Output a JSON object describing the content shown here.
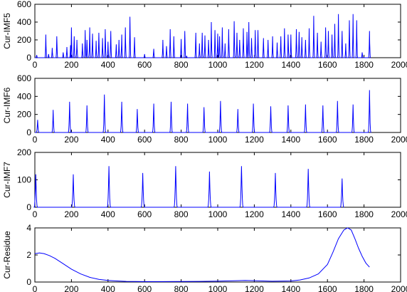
{
  "chart_data": [
    {
      "type": "line",
      "ylabel": "Cur-IMF5",
      "xlim": [
        0,
        2000
      ],
      "ylim": [
        0,
        600
      ],
      "xticks": [
        0,
        200,
        400,
        600,
        800,
        1000,
        1200,
        1400,
        1600,
        1800,
        2000
      ],
      "yticks": [
        0,
        200,
        400,
        600
      ],
      "color": "#0000ff",
      "series": [
        {
          "x": [
            10,
            60,
            75,
            95,
            120,
            155,
            175,
            195,
            200,
            215,
            230,
            260,
            275,
            285,
            300,
            315,
            335,
            350,
            370,
            385,
            400,
            415,
            445,
            460,
            475,
            495,
            520,
            545,
            600,
            650,
            700,
            720,
            740,
            760,
            800,
            820,
            830,
            880,
            900,
            915,
            930,
            950,
            965,
            985,
            1000,
            1010,
            1025,
            1040,
            1060,
            1090,
            1105,
            1120,
            1140,
            1160,
            1170,
            1185,
            1205,
            1220,
            1250,
            1275,
            1300,
            1325,
            1345,
            1365,
            1385,
            1400,
            1430,
            1445,
            1460,
            1480,
            1500,
            1525,
            1545,
            1565,
            1590,
            1605,
            1625,
            1640,
            1660,
            1680,
            1700,
            1720,
            1740,
            1760,
            1790,
            1830
          ],
          "values": [
            30,
            260,
            40,
            110,
            240,
            60,
            120,
            140,
            340,
            240,
            200,
            160,
            310,
            200,
            340,
            270,
            190,
            280,
            220,
            320,
            180,
            300,
            150,
            200,
            260,
            340,
            460,
            230,
            40,
            100,
            200,
            130,
            320,
            240,
            210,
            300,
            20,
            280,
            160,
            280,
            250,
            200,
            400,
            310,
            270,
            240,
            340,
            160,
            320,
            410,
            280,
            200,
            330,
            290,
            400,
            220,
            310,
            310,
            220,
            200,
            240,
            170,
            240,
            330,
            260,
            260,
            320,
            290,
            230,
            200,
            330,
            470,
            280,
            180,
            340,
            300,
            260,
            380,
            490,
            300,
            160,
            420,
            490,
            420,
            60,
            300
          ]
        }
      ]
    },
    {
      "type": "line",
      "ylabel": "Cur-IMF6",
      "xlim": [
        0,
        2000
      ],
      "ylim": [
        0,
        600
      ],
      "xticks": [
        0,
        200,
        400,
        600,
        800,
        1000,
        1200,
        1400,
        1600,
        1800,
        2000
      ],
      "yticks": [
        0,
        200,
        400,
        600
      ],
      "color": "#0000ff",
      "series": [
        {
          "x": [
            15,
            100,
            190,
            285,
            380,
            475,
            560,
            650,
            745,
            835,
            925,
            1015,
            1110,
            1195,
            1290,
            1385,
            1480,
            1575,
            1655,
            1740,
            1830
          ],
          "values": [
            140,
            250,
            340,
            300,
            420,
            340,
            260,
            320,
            340,
            320,
            280,
            350,
            260,
            320,
            290,
            300,
            310,
            300,
            350,
            310,
            470
          ]
        }
      ]
    },
    {
      "type": "line",
      "ylabel": "Cur-IMF7",
      "xlim": [
        0,
        2000
      ],
      "ylim": [
        0,
        200
      ],
      "xticks": [
        0,
        200,
        400,
        600,
        800,
        1000,
        1200,
        1400,
        1600,
        1800,
        2000
      ],
      "yticks": [
        0,
        100,
        200
      ],
      "color": "#0000ff",
      "series": [
        {
          "x": [
            5,
            210,
            405,
            590,
            770,
            955,
            1130,
            1315,
            1495,
            1680
          ],
          "values": [
            120,
            120,
            150,
            125,
            150,
            130,
            150,
            125,
            140,
            105
          ]
        }
      ]
    },
    {
      "type": "line",
      "ylabel": "Cur-Residue",
      "xlim": [
        0,
        2000
      ],
      "ylim": [
        0,
        4
      ],
      "xticks": [
        0,
        200,
        400,
        600,
        800,
        1000,
        1200,
        1400,
        1600,
        1800,
        2000
      ],
      "yticks": [
        0,
        2,
        4
      ],
      "color": "#0000ff",
      "series": [
        {
          "x": [
            0,
            25,
            50,
            80,
            110,
            150,
            200,
            250,
            300,
            350,
            400,
            450,
            500,
            600,
            700,
            800,
            900,
            1000,
            1100,
            1150,
            1200,
            1300,
            1400,
            1450,
            1500,
            1550,
            1600,
            1630,
            1660,
            1690,
            1710,
            1730,
            1750,
            1770,
            1790,
            1810,
            1830
          ],
          "values": [
            2.1,
            2.15,
            2.1,
            1.95,
            1.75,
            1.4,
            0.95,
            0.6,
            0.35,
            0.2,
            0.12,
            0.08,
            0.05,
            0.03,
            0.03,
            0.04,
            0.05,
            0.07,
            0.1,
            0.12,
            0.1,
            0.06,
            0.08,
            0.15,
            0.3,
            0.6,
            1.3,
            2.2,
            3.2,
            3.85,
            4.0,
            3.85,
            3.2,
            2.5,
            1.9,
            1.4,
            1.1
          ]
        }
      ]
    }
  ]
}
